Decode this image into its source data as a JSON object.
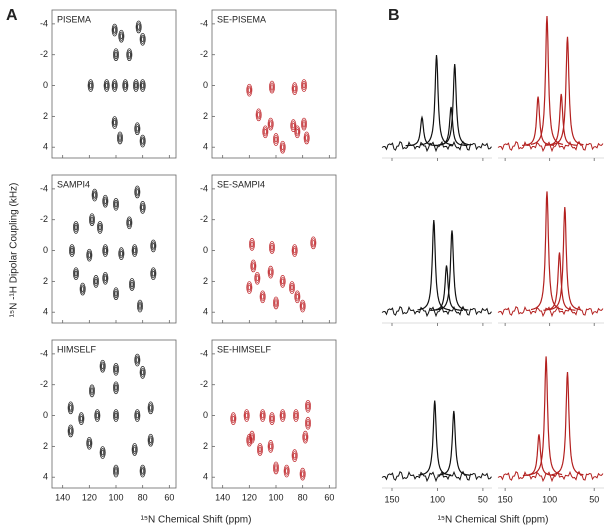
{
  "labels": {
    "panel_a": "A",
    "panel_b": "B",
    "y_axis": "¹⁵N -¹H Dipolar Coupling (kHz)",
    "x_axis_a": "¹⁵N Chemical Shift (ppm)",
    "x_axis_b": "¹⁵N Chemical Shift (ppm)"
  },
  "chart_data": [
    {
      "type": "contour",
      "title": "PISEMA",
      "color": "#222222",
      "xlim": [
        148,
        55
      ],
      "ylim": [
        -4.9,
        4.7
      ],
      "xticks": [
        140,
        120,
        100,
        80,
        60
      ],
      "yticks": [
        -4,
        -2,
        0,
        2,
        4
      ],
      "x": [
        101,
        96,
        83,
        80,
        100,
        90,
        119,
        107,
        101,
        93,
        85,
        80,
        101,
        97,
        84,
        80
      ],
      "y": [
        -3.6,
        -3.2,
        -3.8,
        -3.0,
        -2,
        -2,
        0,
        0,
        0,
        0,
        0,
        0,
        2.4,
        3.4,
        2.8,
        3.6
      ]
    },
    {
      "type": "contour",
      "title": "SE-PISEMA",
      "color": "#c0282d",
      "xlim": [
        148,
        55
      ],
      "ylim": [
        -4.9,
        4.7
      ],
      "xticks": [
        140,
        120,
        100,
        80,
        60
      ],
      "yticks": [
        -4,
        -2,
        0,
        2,
        4
      ],
      "x": [
        120,
        103,
        86,
        79,
        113,
        108,
        104,
        100,
        95,
        87,
        84,
        79,
        77
      ],
      "y": [
        0.3,
        0.1,
        0.2,
        0,
        1.9,
        3,
        2.5,
        3.5,
        4,
        2.6,
        3,
        2.5,
        3.4
      ]
    },
    {
      "type": "contour",
      "title": "SAMPI4",
      "color": "#222222",
      "xlim": [
        148,
        55
      ],
      "ylim": [
        -4.9,
        4.7
      ],
      "xticks": [
        140,
        120,
        100,
        80,
        60
      ],
      "yticks": [
        -4,
        -2,
        0,
        2,
        4
      ],
      "x": [
        116,
        108,
        100,
        84,
        80,
        130,
        118,
        112,
        90,
        72,
        133,
        120,
        108,
        96,
        86,
        130,
        125,
        115,
        108,
        100,
        88,
        82,
        72
      ],
      "y": [
        -3.6,
        -3.2,
        -3,
        -3.8,
        -2.8,
        -1.5,
        -2,
        -1.5,
        -1.8,
        -0.3,
        0,
        0.3,
        0,
        0.2,
        0,
        1.5,
        2.5,
        2,
        1.8,
        2.8,
        2.2,
        3.6,
        1.5
      ]
    },
    {
      "type": "contour",
      "title": "SE-SAMPI4",
      "color": "#c0282d",
      "xlim": [
        148,
        55
      ],
      "ylim": [
        -4.9,
        4.7
      ],
      "xticks": [
        140,
        120,
        100,
        80,
        60
      ],
      "yticks": [
        -4,
        -2,
        0,
        2,
        4
      ],
      "x": [
        120,
        114,
        110,
        104,
        100,
        95,
        88,
        84,
        80,
        72,
        103,
        86,
        117,
        118
      ],
      "y": [
        2.4,
        1.8,
        3,
        1.4,
        3.4,
        2,
        2.4,
        3,
        3.6,
        -0.5,
        -0.2,
        0,
        1,
        -0.4
      ]
    },
    {
      "type": "contour",
      "title": "HIMSELF",
      "color": "#222222",
      "xlim": [
        148,
        55
      ],
      "ylim": [
        -4.9,
        4.7
      ],
      "xticks": [
        140,
        120,
        100,
        80,
        60
      ],
      "yticks": [
        -4,
        -2,
        0,
        2,
        4
      ],
      "x": [
        110,
        100,
        84,
        80,
        118,
        100,
        134,
        126,
        114,
        100,
        84,
        74,
        134,
        120,
        110,
        100,
        86,
        80,
        74
      ],
      "y": [
        -3.2,
        -3,
        -3.6,
        -2.8,
        -1.6,
        -1.8,
        -0.5,
        0.2,
        0,
        0,
        0,
        -0.5,
        1,
        1.8,
        2.4,
        3.6,
        2.2,
        3.6,
        1.6
      ]
    },
    {
      "type": "contour",
      "title": "SE-HIMSELF",
      "color": "#c0282d",
      "xlim": [
        148,
        55
      ],
      "ylim": [
        -4.9,
        4.7
      ],
      "xticks": [
        140,
        120,
        100,
        80,
        60
      ],
      "yticks": [
        -4,
        -2,
        0,
        2,
        4
      ],
      "x": [
        132,
        122,
        118,
        110,
        103,
        95,
        85,
        76,
        76,
        120,
        112,
        104,
        100,
        92,
        86,
        80,
        78
      ],
      "y": [
        0.2,
        0,
        1.4,
        0,
        0.2,
        0,
        0,
        -0.6,
        0.5,
        1.6,
        2.2,
        2,
        3.4,
        3.6,
        2.6,
        3.8,
        1.4
      ]
    },
    {
      "type": "spectrum",
      "color": "#111111",
      "xlim": [
        161,
        40
      ],
      "xticks": [
        150,
        100,
        50
      ],
      "x": [
        101,
        81,
        85,
        117
      ],
      "values": [
        70,
        63,
        30,
        22
      ]
    },
    {
      "type": "spectrum",
      "color": "#b3201f",
      "xlim": [
        158,
        39
      ],
      "xticks": [
        150,
        100,
        50
      ],
      "x": [
        103,
        80,
        113,
        87
      ],
      "values": [
        100,
        84,
        38,
        40
      ]
    },
    {
      "type": "spectrum",
      "color": "#111111",
      "xlim": [
        161,
        40
      ],
      "xticks": [
        150,
        100,
        50
      ],
      "x": [
        104,
        84,
        90
      ],
      "values": [
        70,
        62,
        35
      ]
    },
    {
      "type": "spectrum",
      "color": "#b3201f",
      "xlim": [
        158,
        39
      ],
      "xticks": [
        150,
        100,
        50
      ],
      "x": [
        103,
        83,
        89
      ],
      "values": [
        92,
        80,
        45
      ]
    },
    {
      "type": "spectrum",
      "color": "#111111",
      "xlim": [
        161,
        40
      ],
      "xticks": [
        150,
        100,
        50
      ],
      "x": [
        103,
        82
      ],
      "values": [
        58,
        50
      ]
    },
    {
      "type": "spectrum",
      "color": "#b3201f",
      "xlim": [
        158,
        39
      ],
      "xticks": [
        150,
        100,
        50
      ],
      "x": [
        104,
        80,
        112
      ],
      "values": [
        92,
        80,
        32
      ]
    }
  ]
}
